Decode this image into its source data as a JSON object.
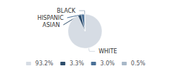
{
  "chart_data": {
    "type": "pie",
    "categories": [
      "WHITE",
      "ASIAN",
      "HISPANIC",
      "BLACK"
    ],
    "values": [
      93.2,
      3.3,
      3.0,
      0.5
    ],
    "value_labels": [
      "93.2%",
      "3.3%",
      "3.0%",
      "0.5%"
    ],
    "colors": [
      "#d6dce4",
      "#2e4d6b",
      "#4a7097",
      "#a8b8c8"
    ],
    "legend": "bottom"
  }
}
